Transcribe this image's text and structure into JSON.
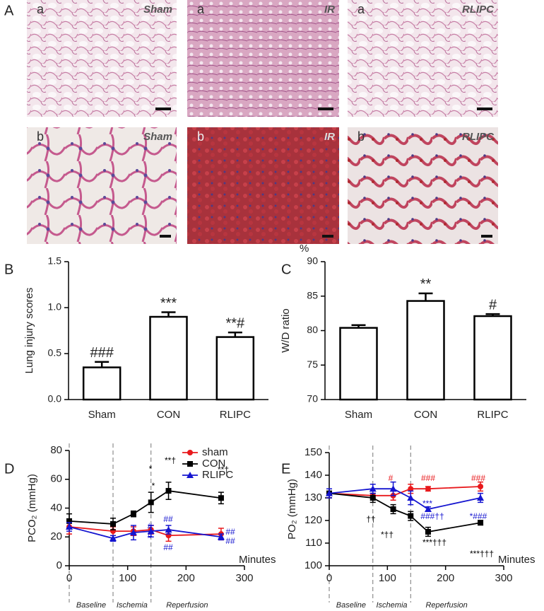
{
  "panel_a": {
    "label": "A",
    "rows": [
      {
        "label": "a",
        "groups": [
          "Sham",
          "IR",
          "RLIPC"
        ]
      },
      {
        "label": "b",
        "groups": [
          "Sham",
          "IR",
          "RLIPC"
        ]
      }
    ]
  },
  "chart_data": [
    {
      "type": "bar",
      "panel_label": "B",
      "y_label": "Lung injury scores",
      "categories": [
        "Sham",
        "CON",
        "RLIPC"
      ],
      "values": [
        0.35,
        0.9,
        0.68
      ],
      "errors": [
        0.06,
        0.05,
        0.05
      ],
      "annotations": [
        "###",
        "***",
        "**#"
      ],
      "ylim": [
        0,
        1.5
      ],
      "yticks": [
        {
          "value": 0,
          "label": "0.0"
        },
        {
          "value": 0.5,
          "label": "0.5"
        },
        {
          "value": 1,
          "label": "1.0"
        },
        {
          "value": 1.5,
          "label": "1.5"
        }
      ],
      "color": "#ffffff"
    },
    {
      "type": "bar",
      "panel_label": "C",
      "y_label": "W/D ratio",
      "y_unit": "%",
      "categories": [
        "Sham",
        "CON",
        "RLIPC"
      ],
      "values": [
        80.4,
        84.3,
        82.1
      ],
      "errors": [
        0.4,
        1.1,
        0.3
      ],
      "annotations": [
        "",
        "**",
        "#"
      ],
      "ylim": [
        70,
        90
      ],
      "yticks": [
        70,
        75,
        80,
        85,
        90
      ],
      "color": "#ffffff"
    },
    {
      "type": "line",
      "panel_label": "D",
      "y_label": "PCO₂ (mmHg)",
      "x_label": "Minutes",
      "x": [
        0,
        75,
        110,
        140,
        170,
        260
      ],
      "xlim": [
        0,
        300
      ],
      "xticks": [
        0,
        100,
        200,
        300
      ],
      "ylim": [
        0,
        80
      ],
      "yticks": [
        0,
        20,
        40,
        60,
        80
      ],
      "phase_lines": [
        0,
        75,
        140
      ],
      "phases": [
        "Baseline",
        "Ischemia",
        "Reperfusion"
      ],
      "series": [
        {
          "name": "sham",
          "color": "#e8191c",
          "marker": "circle",
          "values": [
            27,
            24,
            24,
            25,
            21,
            22
          ],
          "errors": [
            5,
            3,
            3,
            3,
            4,
            4
          ]
        },
        {
          "name": "CON",
          "color": "#000000",
          "marker": "square",
          "values": [
            31,
            29,
            36,
            44,
            52,
            47
          ],
          "errors": [
            5,
            4,
            2,
            7,
            6,
            4
          ]
        },
        {
          "name": "RLIPC",
          "color": "#1515d0",
          "marker": "triangle",
          "values": [
            27,
            19,
            23,
            24,
            25,
            20
          ],
          "errors": [
            3,
            2,
            5,
            4,
            3,
            2
          ]
        }
      ],
      "annotations": [
        {
          "text": "*",
          "color": "#000000"
        },
        {
          "text": "*",
          "color": "#000000"
        },
        {
          "text": "**†",
          "color": "#000000"
        },
        {
          "text": "**†",
          "color": "#000000"
        },
        {
          "text": "#",
          "color": "#1515d0"
        },
        {
          "text": "#",
          "color": "#1515d0"
        },
        {
          "text": "##",
          "color": "#1515d0"
        },
        {
          "text": "##",
          "color": "#1515d0"
        },
        {
          "text": "##",
          "color": "#1515d0"
        },
        {
          "text": "##",
          "color": "#1515d0"
        }
      ]
    },
    {
      "type": "line",
      "panel_label": "E",
      "y_label": "PO₂ (mmHg)",
      "x_label": "Minutes",
      "x": [
        0,
        75,
        110,
        140,
        170,
        260
      ],
      "xlim": [
        0,
        300
      ],
      "xticks": [
        0,
        100,
        200,
        300
      ],
      "ylim": [
        100,
        150
      ],
      "yticks": [
        100,
        110,
        120,
        130,
        140,
        150
      ],
      "phase_lines": [
        0,
        75,
        140
      ],
      "phases": [
        "Baseline",
        "Ischemia",
        "Reperfusion"
      ],
      "series": [
        {
          "name": "sham",
          "color": "#e8191c",
          "marker": "circle",
          "values": [
            132,
            131,
            131,
            134,
            134,
            135
          ],
          "errors": [
            2,
            1,
            2,
            2,
            1,
            2
          ]
        },
        {
          "name": "CON",
          "color": "#000000",
          "marker": "square",
          "values": [
            132,
            130,
            125,
            122,
            115,
            119
          ],
          "errors": [
            2,
            2,
            2,
            2,
            2,
            1
          ]
        },
        {
          "name": "RLIPC",
          "color": "#1515d0",
          "marker": "triangle",
          "values": [
            132,
            134,
            134,
            130,
            125,
            130
          ],
          "errors": [
            2,
            2,
            3,
            3,
            1,
            2
          ]
        }
      ],
      "annotations": [
        {
          "text": "#",
          "color": "#e8191c"
        },
        {
          "text": "###",
          "color": "#e8191c"
        },
        {
          "text": "###",
          "color": "#e8191c"
        },
        {
          "text": "***",
          "color": "#1515d0"
        },
        {
          "text": "###††",
          "color": "#1515d0"
        },
        {
          "text": "*###",
          "color": "#1515d0"
        },
        {
          "text": "††",
          "color": "#000000"
        },
        {
          "text": "*††",
          "color": "#000000"
        },
        {
          "text": "***†††",
          "color": "#000000"
        },
        {
          "text": "***†††",
          "color": "#000000"
        }
      ]
    }
  ]
}
